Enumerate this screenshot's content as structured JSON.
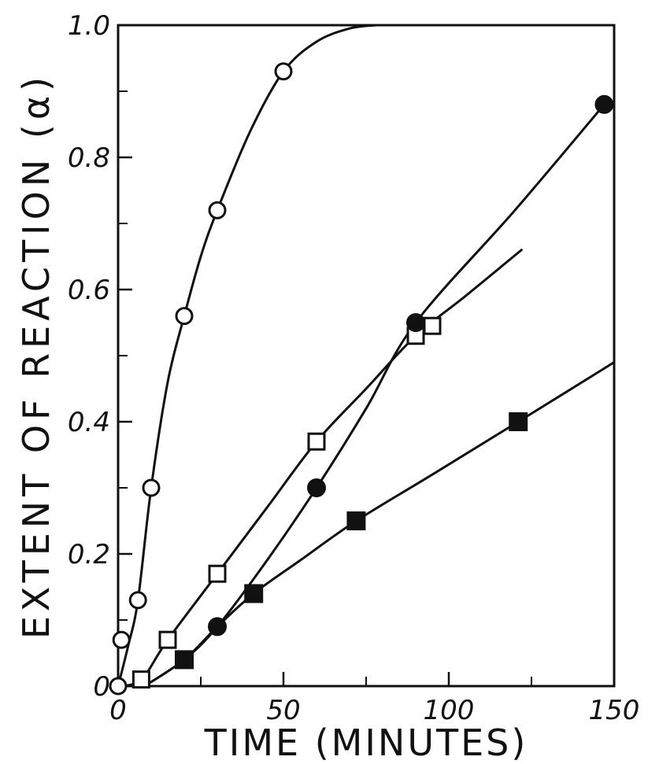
{
  "chart_data": {
    "type": "scatter",
    "title": "",
    "xlabel": "TIME (MINUTES)",
    "ylabel": "EXTENT OF REACTION (α)",
    "xlim": [
      0,
      150
    ],
    "ylim": [
      0,
      1.0
    ],
    "xticks": [
      0,
      50,
      100,
      150
    ],
    "xtick_labels": [
      "0",
      "50",
      "100",
      "150"
    ],
    "yticks": [
      0,
      0.2,
      0.4,
      0.6,
      0.8,
      1.0
    ],
    "ytick_labels": [
      "0",
      "0.2",
      "0.4",
      "0.6",
      "0.8",
      "1.0"
    ],
    "grid": false,
    "legend": "none",
    "color": "#111111",
    "series": [
      {
        "marker": "open-circle",
        "x": [
          0,
          1,
          6,
          10,
          20,
          30,
          50
        ],
        "y": [
          0,
          0.07,
          0.13,
          0.3,
          0.56,
          0.72,
          0.93
        ],
        "curve": {
          "x": [
            0,
            3,
            6,
            10,
            15,
            20,
            25,
            30,
            40,
            50,
            60,
            70,
            78
          ],
          "y": [
            0,
            0.06,
            0.13,
            0.3,
            0.46,
            0.56,
            0.65,
            0.72,
            0.84,
            0.93,
            0.975,
            0.995,
            1.0
          ]
        }
      },
      {
        "marker": "open-square",
        "x": [
          7,
          15,
          30,
          60,
          90,
          95
        ],
        "y": [
          0.01,
          0.07,
          0.17,
          0.37,
          0.53,
          0.545
        ],
        "curve": {
          "x": [
            0,
            7,
            15,
            30,
            45,
            60,
            75,
            90,
            105,
            122
          ],
          "y": [
            0,
            0.01,
            0.07,
            0.17,
            0.27,
            0.37,
            0.45,
            0.53,
            0.59,
            0.66
          ]
        }
      },
      {
        "marker": "filled-circle",
        "x": [
          30,
          60,
          90,
          147
        ],
        "y": [
          0.09,
          0.3,
          0.55,
          0.88
        ],
        "curve": {
          "x": [
            8,
            20,
            30,
            45,
            60,
            75,
            90,
            120,
            147
          ],
          "y": [
            0,
            0.04,
            0.09,
            0.19,
            0.3,
            0.42,
            0.55,
            0.72,
            0.88
          ]
        }
      },
      {
        "marker": "filled-square",
        "x": [
          20,
          41,
          72,
          121
        ],
        "y": [
          0.04,
          0.14,
          0.25,
          0.4
        ],
        "curve": {
          "x": [
            8,
            20,
            30,
            41,
            55,
            72,
            95,
            121,
            150
          ],
          "y": [
            0,
            0.04,
            0.09,
            0.14,
            0.19,
            0.25,
            0.32,
            0.4,
            0.49
          ]
        }
      }
    ]
  }
}
